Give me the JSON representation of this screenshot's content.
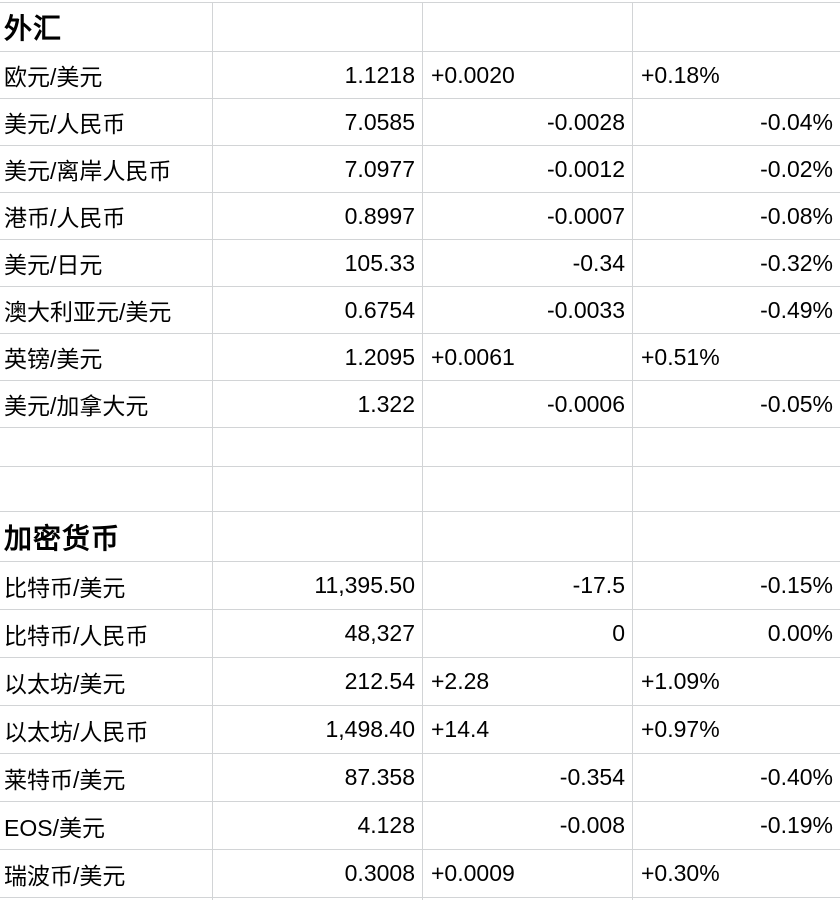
{
  "app": {
    "type": "spreadsheet-quote-table"
  },
  "colors": {
    "grid": "#d2d4d6",
    "text": "#000000",
    "bg": "#ffffff"
  },
  "rows": [
    {
      "type": "section",
      "label": "外汇"
    },
    {
      "type": "data",
      "name": "欧元/美元",
      "price": "1.1218",
      "change": "+0.0020",
      "pct": "+0.18%",
      "change_align": "left",
      "pct_align": "left"
    },
    {
      "type": "data",
      "name": "美元/人民币",
      "price": "7.0585",
      "change": "-0.0028",
      "pct": "-0.04%",
      "change_align": "right",
      "pct_align": "right"
    },
    {
      "type": "data",
      "name": "美元/离岸人民币",
      "price": "7.0977",
      "change": "-0.0012",
      "pct": "-0.02%",
      "change_align": "right",
      "pct_align": "right"
    },
    {
      "type": "data",
      "name": "港币/人民币",
      "price": "0.8997",
      "change": "-0.0007",
      "pct": "-0.08%",
      "change_align": "right",
      "pct_align": "right"
    },
    {
      "type": "data",
      "name": "美元/日元",
      "price": "105.33",
      "change": "-0.34",
      "pct": "-0.32%",
      "change_align": "right",
      "pct_align": "right"
    },
    {
      "type": "data",
      "name": "澳大利亚元/美元",
      "price": "0.6754",
      "change": "-0.0033",
      "pct": "-0.49%",
      "change_align": "right",
      "pct_align": "right"
    },
    {
      "type": "data",
      "name": "英镑/美元",
      "price": "1.2095",
      "change": "+0.0061",
      "pct": "+0.51%",
      "change_align": "left",
      "pct_align": "left"
    },
    {
      "type": "data",
      "name": "美元/加拿大元",
      "price": "1.322",
      "change": "-0.0006",
      "pct": "-0.05%",
      "change_align": "right",
      "pct_align": "right"
    },
    {
      "type": "empty"
    },
    {
      "type": "empty"
    },
    {
      "type": "section",
      "label": "加密货币"
    },
    {
      "type": "data",
      "name": "比特币/美元",
      "price": "11,395.50",
      "change": "-17.5",
      "pct": "-0.15%",
      "change_align": "right",
      "pct_align": "right"
    },
    {
      "type": "data",
      "name": "比特币/人民币",
      "price": "48,327",
      "change": "0",
      "pct": "0.00%",
      "change_align": "right",
      "pct_align": "right"
    },
    {
      "type": "data",
      "name": "以太坊/美元",
      "price": "212.54",
      "change": "+2.28",
      "pct": "+1.09%",
      "change_align": "left",
      "pct_align": "left"
    },
    {
      "type": "data",
      "name": "以太坊/人民币",
      "price": "1,498.40",
      "change": "+14.4",
      "pct": "+0.97%",
      "change_align": "left",
      "pct_align": "left"
    },
    {
      "type": "data",
      "name": "莱特币/美元",
      "price": "87.358",
      "change": "-0.354",
      "pct": "-0.40%",
      "change_align": "right",
      "pct_align": "right"
    },
    {
      "type": "data",
      "name": "EOS/美元",
      "price": "4.128",
      "change": "-0.008",
      "pct": "-0.19%",
      "change_align": "right",
      "pct_align": "right"
    },
    {
      "type": "data",
      "name": "瑞波币/美元",
      "price": "0.3008",
      "change": "+0.0009",
      "pct": "+0.30%",
      "change_align": "left",
      "pct_align": "left"
    }
  ]
}
